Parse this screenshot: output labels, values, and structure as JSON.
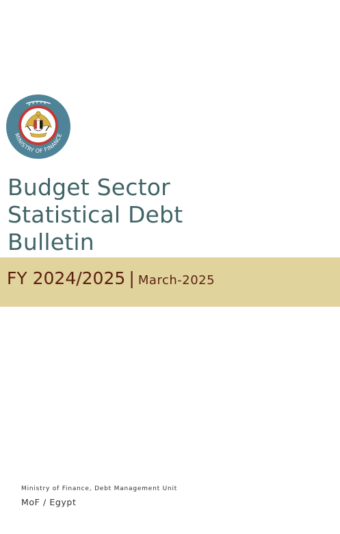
{
  "logo": {
    "seal_text": "MINISTRY OF FINANCE",
    "icon": "egypt-eagle-emblem-icon",
    "colors": {
      "outer_ring": "#4f8398",
      "inner_ring": "#c23a35",
      "gold": "#d7b144",
      "black": "#1d1d1d"
    }
  },
  "title": {
    "line1": "Budget Sector",
    "line2": "Statistical Debt",
    "line3": "Bulletin"
  },
  "band": {
    "fiscal_year": "FY 2024/2025",
    "separator": "|",
    "month": "March-2025",
    "background": "#e0d39c",
    "text_color": "#5e1f12"
  },
  "footer": {
    "unit": "Ministry of Finance, Debt Management Unit",
    "country": "MoF / Egypt"
  }
}
